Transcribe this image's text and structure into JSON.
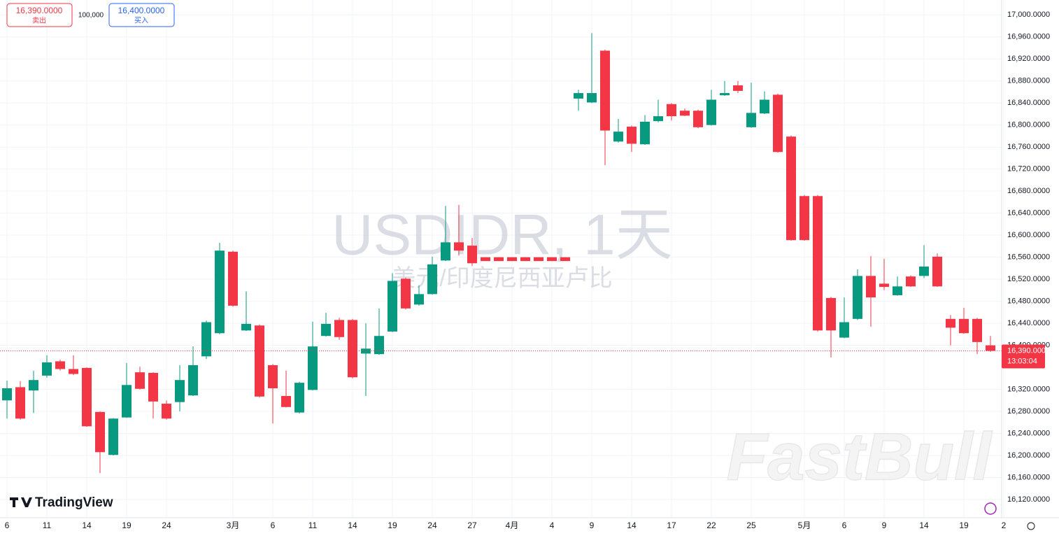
{
  "chart_data": {
    "type": "candlestick",
    "title": "USDIDR, 1天",
    "subtitle": "美元/印度尼西亚卢比",
    "categories": [
      "6",
      null,
      null,
      "11",
      null,
      null,
      "14",
      null,
      null,
      "19",
      null,
      null,
      "24",
      null,
      null,
      null,
      null,
      "3月",
      null,
      null,
      "6",
      null,
      null,
      "11",
      null,
      null,
      "14",
      null,
      null,
      "19",
      null,
      null,
      "24",
      null,
      null,
      "27",
      null,
      null,
      "4月",
      null,
      null,
      "4",
      null,
      null,
      "9",
      null,
      null,
      "14",
      null,
      null,
      "17",
      null,
      null,
      "22",
      null,
      null,
      "25",
      null,
      null,
      null,
      "5月",
      null,
      null,
      "6",
      null,
      null,
      "9",
      null,
      null,
      "14",
      null,
      null,
      "19",
      null,
      null,
      "2"
    ],
    "open": [
      16300,
      16324,
      16318,
      16345,
      16371,
      16357,
      16359,
      16279,
      16201,
      16269,
      16351,
      16350,
      16294,
      16297,
      16309,
      16380,
      16422,
      16570,
      16427,
      16436,
      16364,
      16308,
      16278,
      16319,
      16417,
      16446,
      16446,
      16385,
      16384,
      16425,
      16521,
      16474,
      16493,
      16554,
      16587,
      16581,
      16560,
      16560,
      16560,
      16560,
      16560,
      16560,
      16560,
      16848,
      16841,
      16935,
      16770,
      16797,
      16765,
      16807,
      16838,
      16826,
      16826,
      16800,
      16854,
      16872,
      16796,
      16821,
      16855,
      16779,
      16671,
      16671,
      16486,
      16414,
      16448,
      16526,
      16512,
      16491,
      16525,
      16526,
      16561,
      16448,
      16448,
      16448,
      16400,
      null
    ],
    "high": [
      16336,
      16335,
      16354,
      16382,
      16374,
      16382,
      16360,
      16280,
      16268,
      16368,
      16361,
      16351,
      16300,
      16364,
      16398,
      16445,
      16586,
      16572,
      16498,
      16438,
      16366,
      16354,
      16334,
      16443,
      16459,
      16450,
      16448,
      16440,
      16467,
      16531,
      16523,
      16509,
      16561,
      16653,
      16655,
      16595,
      16560,
      16560,
      16560,
      16560,
      16560,
      16560,
      16560,
      16864,
      16967,
      16937,
      16811,
      16799,
      16818,
      16846,
      16840,
      16830,
      16828,
      16864,
      16880,
      16880,
      16877,
      16861,
      16857,
      16781,
      16673,
      16673,
      16488,
      16487,
      16538,
      16562,
      16557,
      16525,
      16527,
      16582,
      16567,
      16455,
      16468,
      16450,
      16417,
      null
    ],
    "low": [
      16267,
      16265,
      16277,
      16341,
      16354,
      16346,
      16252,
      16168,
      16200,
      16268,
      16320,
      16267,
      16265,
      16280,
      16308,
      16375,
      16420,
      16470,
      16426,
      16305,
      16258,
      16287,
      16276,
      16318,
      16416,
      16410,
      16340,
      16308,
      16383,
      16424,
      16465,
      16472,
      16492,
      16553,
      16563,
      16544,
      16553,
      16553,
      16553,
      16553,
      16553,
      16553,
      16553,
      16826,
      16840,
      16727,
      16768,
      16751,
      16764,
      16805,
      16808,
      16816,
      16794,
      16799,
      16853,
      16858,
      16795,
      16820,
      16750,
      16590,
      16590,
      16425,
      16378,
      16413,
      16446,
      16434,
      16500,
      16490,
      16506,
      16522,
      16506,
      16400,
      16421,
      16384,
      16388,
      null
    ],
    "close": [
      16322,
      16267,
      16337,
      16369,
      16357,
      16348,
      16253,
      16206,
      16267,
      16328,
      16321,
      16298,
      16267,
      16337,
      16364,
      16442,
      16572,
      16472,
      16439,
      16307,
      16322,
      16288,
      16332,
      16398,
      16439,
      16415,
      16342,
      16394,
      16417,
      16517,
      16467,
      16493,
      16547,
      16587,
      16572,
      16549,
      16553,
      16553,
      16553,
      16553,
      16553,
      16553,
      16553,
      16858,
      16858,
      16790,
      16788,
      16766,
      16806,
      16816,
      16816,
      16817,
      16796,
      16846,
      16858,
      16862,
      16822,
      16846,
      16751,
      16591,
      16591,
      16427,
      16427,
      16442,
      16526,
      16487,
      16506,
      16507,
      16507,
      16543,
      16507,
      16432,
      16422,
      16406,
      16390,
      null
    ],
    "up_color": "#089981",
    "down_color": "#f23645",
    "ylim": [
      16087,
      17027
    ],
    "yticks": [
      {
        "value": 16120,
        "label": "16,120.0000"
      },
      {
        "value": 16160,
        "label": "16,160.0000"
      },
      {
        "value": 16200,
        "label": "16,200.0000"
      },
      {
        "value": 16240,
        "label": "16,240.0000"
      },
      {
        "value": 16280,
        "label": "16,280.0000"
      },
      {
        "value": 16320,
        "label": "16,320.0000"
      },
      {
        "value": 16400,
        "label": "16,400.0000"
      },
      {
        "value": 16440,
        "label": "16,440.0000"
      },
      {
        "value": 16480,
        "label": "16,480.0000"
      },
      {
        "value": 16520,
        "label": "16,520.0000"
      },
      {
        "value": 16560,
        "label": "16,560.0000"
      },
      {
        "value": 16600,
        "label": "16,600.0000"
      },
      {
        "value": 16640,
        "label": "16,640.0000"
      },
      {
        "value": 16680,
        "label": "16,680.0000"
      },
      {
        "value": 16720,
        "label": "16,720.0000"
      },
      {
        "value": 16760,
        "label": "16,760.0000"
      },
      {
        "value": 16800,
        "label": "16,800.0000"
      },
      {
        "value": 16840,
        "label": "16,840.0000"
      },
      {
        "value": 16880,
        "label": "16,880.0000"
      },
      {
        "value": 16920,
        "label": "16,920.0000"
      },
      {
        "value": 16960,
        "label": "16,960.0000"
      },
      {
        "value": 17000,
        "label": "17,000.0000"
      }
    ],
    "grid": true,
    "last_price": {
      "value": 16390,
      "label": "16,390.0000"
    },
    "countdown": "13:03:04"
  },
  "trade_panel": {
    "sell_price": "16,390.0000",
    "sell_label": "卖出",
    "quantity": "100,000",
    "buy_price": "16,400.0000",
    "buy_label": "买入"
  },
  "branding": {
    "logo": "TradingView",
    "watermark": "FastBull"
  }
}
